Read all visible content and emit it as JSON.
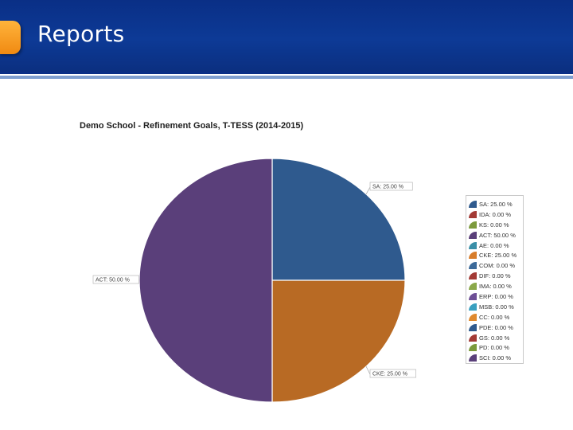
{
  "header": {
    "title": "Reports"
  },
  "chart_data": {
    "type": "pie",
    "title": "Demo School - Refinement Goals, T-TESS (2014-2015)",
    "slices": [
      {
        "label": "SA",
        "value": 25.0,
        "display": "SA: 25.00 %",
        "color": "#2f5a8e"
      },
      {
        "label": "CKE",
        "value": 25.0,
        "display": "CKE: 25.00 %",
        "color": "#b86a24"
      },
      {
        "label": "ACT",
        "value": 50.0,
        "display": "ACT: 50.00 %",
        "color": "#5a3f7a"
      }
    ],
    "legend_position": "right",
    "legend": [
      {
        "text": "SA: 25.00 %",
        "color": "#2f5a8e"
      },
      {
        "text": "IDA: 0.00 %",
        "color": "#a33a35"
      },
      {
        "text": "KS: 0.00 %",
        "color": "#7c9a3c"
      },
      {
        "text": "ACT: 50.00 %",
        "color": "#5a3f7a"
      },
      {
        "text": "AE: 0.00 %",
        "color": "#3a8fa8"
      },
      {
        "text": "CKE: 25.00 %",
        "color": "#d87d2b"
      },
      {
        "text": "COM: 0.00 %",
        "color": "#3c6a9a"
      },
      {
        "text": "DIF: 0.00 %",
        "color": "#a33a35"
      },
      {
        "text": "IMA: 0.00 %",
        "color": "#8aa84a"
      },
      {
        "text": "ERP: 0.00 %",
        "color": "#6e4f96"
      },
      {
        "text": "MSB: 0.00 %",
        "color": "#3aa0c0"
      },
      {
        "text": "CC: 0.00 %",
        "color": "#e08a2e"
      },
      {
        "text": "PDE: 0.00 %",
        "color": "#2f5a8e"
      },
      {
        "text": "GS: 0.00 %",
        "color": "#a33a35"
      },
      {
        "text": "PD: 0.00 %",
        "color": "#7c9a3c"
      },
      {
        "text": "SCI: 0.00 %",
        "color": "#5a3f7a"
      }
    ]
  }
}
